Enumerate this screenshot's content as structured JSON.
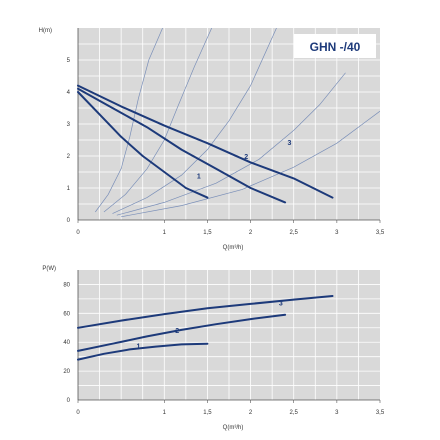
{
  "colors": {
    "plot_bg": "#d9d9d9",
    "grid": "#ffffff",
    "curve": "#1d3a7a",
    "efficiency": "#7a8fb8",
    "text": "#333333"
  },
  "chart_data": [
    {
      "type": "line",
      "badge": "GHN -/40",
      "ylabel": "H(m)",
      "xlabel": "Q(m³/h)",
      "xlim": [
        0,
        3.5
      ],
      "ylim": [
        0,
        6
      ],
      "x_ticks": [
        "0",
        "1",
        "1,5",
        "2",
        "2,5",
        "3",
        "3,5"
      ],
      "x_tick_values": [
        0,
        1,
        1.5,
        2,
        2.5,
        3,
        3.5
      ],
      "y_ticks": [
        "0",
        "1",
        "2",
        "3",
        "4",
        "5"
      ],
      "y_tick_values": [
        0,
        1,
        2,
        3,
        4,
        5
      ],
      "grid": true,
      "series": [
        {
          "name": "1",
          "label_at": [
            1.4,
            1.3
          ],
          "points": [
            [
              0,
              4.0
            ],
            [
              0.25,
              3.3
            ],
            [
              0.5,
              2.6
            ],
            [
              0.75,
              2.0
            ],
            [
              1.0,
              1.5
            ],
            [
              1.25,
              1.0
            ],
            [
              1.5,
              0.7
            ]
          ]
        },
        {
          "name": "2",
          "label_at": [
            1.95,
            1.9
          ],
          "points": [
            [
              0,
              4.1
            ],
            [
              0.4,
              3.5
            ],
            [
              0.8,
              2.9
            ],
            [
              1.2,
              2.2
            ],
            [
              1.6,
              1.6
            ],
            [
              2.0,
              1.0
            ],
            [
              2.4,
              0.55
            ]
          ]
        },
        {
          "name": "3",
          "label_at": [
            2.45,
            2.35
          ],
          "points": [
            [
              0,
              4.2
            ],
            [
              0.5,
              3.55
            ],
            [
              1.0,
              2.95
            ],
            [
              1.5,
              2.4
            ],
            [
              2.0,
              1.8
            ],
            [
              2.5,
              1.3
            ],
            [
              2.95,
              0.7
            ]
          ]
        }
      ],
      "efficiency_curves": [
        {
          "points": [
            [
              0.2,
              0.25
            ],
            [
              0.35,
              0.8
            ],
            [
              0.5,
              1.6
            ],
            [
              0.6,
              2.6
            ],
            [
              0.7,
              3.8
            ],
            [
              0.82,
              5.0
            ],
            [
              0.98,
              6.0
            ]
          ]
        },
        {
          "points": [
            [
              0.3,
              0.25
            ],
            [
              0.55,
              0.8
            ],
            [
              0.8,
              1.6
            ],
            [
              1.0,
              2.5
            ],
            [
              1.15,
              3.5
            ],
            [
              1.35,
              4.8
            ],
            [
              1.55,
              6.0
            ]
          ]
        },
        {
          "points": [
            [
              0.4,
              0.2
            ],
            [
              0.8,
              0.7
            ],
            [
              1.2,
              1.4
            ],
            [
              1.5,
              2.2
            ],
            [
              1.75,
              3.1
            ],
            [
              2.0,
              4.2
            ],
            [
              2.3,
              6.0
            ]
          ]
        },
        {
          "points": [
            [
              0.45,
              0.15
            ],
            [
              1.0,
              0.55
            ],
            [
              1.6,
              1.15
            ],
            [
              2.1,
              1.9
            ],
            [
              2.5,
              2.8
            ],
            [
              2.8,
              3.6
            ],
            [
              3.1,
              4.6
            ]
          ]
        },
        {
          "points": [
            [
              0.5,
              0.1
            ],
            [
              1.2,
              0.45
            ],
            [
              1.9,
              0.95
            ],
            [
              2.5,
              1.65
            ],
            [
              3.0,
              2.4
            ],
            [
              3.3,
              3.0
            ],
            [
              3.5,
              3.4
            ]
          ]
        }
      ]
    },
    {
      "type": "line",
      "ylabel": "P(W)",
      "xlabel": "Q(m³/h)",
      "xlim": [
        0,
        3.5
      ],
      "ylim": [
        0,
        90
      ],
      "x_ticks": [
        "0",
        "1",
        "1,5",
        "2",
        "2,5",
        "3",
        "3,5"
      ],
      "x_tick_values": [
        0,
        1,
        1.5,
        2,
        2.5,
        3,
        3.5
      ],
      "y_ticks": [
        "0",
        "20",
        "40",
        "60",
        "80"
      ],
      "y_tick_values": [
        0,
        20,
        40,
        60,
        80
      ],
      "grid": true,
      "series": [
        {
          "name": "1",
          "label_at": [
            0.7,
            35.5
          ],
          "points": [
            [
              0,
              28
            ],
            [
              0.3,
              32
            ],
            [
              0.6,
              35
            ],
            [
              0.9,
              37
            ],
            [
              1.2,
              38.5
            ],
            [
              1.5,
              39
            ]
          ]
        },
        {
          "name": "2",
          "label_at": [
            1.15,
            46.5
          ],
          "points": [
            [
              0,
              34
            ],
            [
              0.4,
              39
            ],
            [
              0.8,
              44
            ],
            [
              1.2,
              48.5
            ],
            [
              1.6,
              52.5
            ],
            [
              2.0,
              56
            ],
            [
              2.4,
              59
            ]
          ]
        },
        {
          "name": "3",
          "label_at": [
            2.35,
            65.5
          ],
          "points": [
            [
              0,
              50
            ],
            [
              0.5,
              55
            ],
            [
              1.0,
              59.5
            ],
            [
              1.5,
              63.5
            ],
            [
              2.0,
              66.5
            ],
            [
              2.5,
              69.5
            ],
            [
              2.95,
              72
            ]
          ]
        }
      ]
    }
  ]
}
